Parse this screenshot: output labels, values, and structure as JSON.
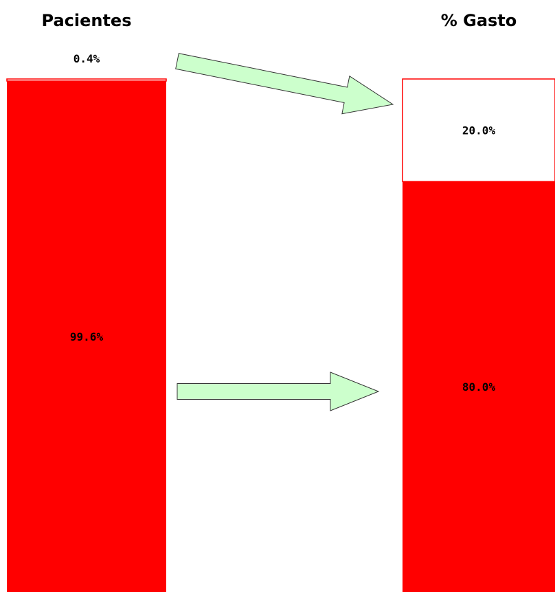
{
  "chart_data": {
    "type": "bar",
    "stacked": true,
    "categories": [
      "Pacientes",
      "% Gasto"
    ],
    "series": [
      {
        "values": [
          99.6,
          80.0
        ],
        "labels": [
          "99.6%",
          "80.0%"
        ],
        "color": "#ff0000"
      },
      {
        "values": [
          0.4,
          20.0
        ],
        "labels": [
          "0.4%",
          "20.0%"
        ],
        "color": "#ffffff",
        "outline": "#ff0000"
      }
    ],
    "ylim": [
      0,
      100
    ],
    "grid": false,
    "legend": "none",
    "arrows": [
      {
        "from_category": "Pacientes",
        "from_series": 1,
        "to_category": "% Gasto",
        "to_series": 1,
        "color": "#ccffcc"
      },
      {
        "from_category": "Pacientes",
        "from_series": 0,
        "to_category": "% Gasto",
        "to_series": 0,
        "color": "#ccffcc"
      }
    ]
  }
}
